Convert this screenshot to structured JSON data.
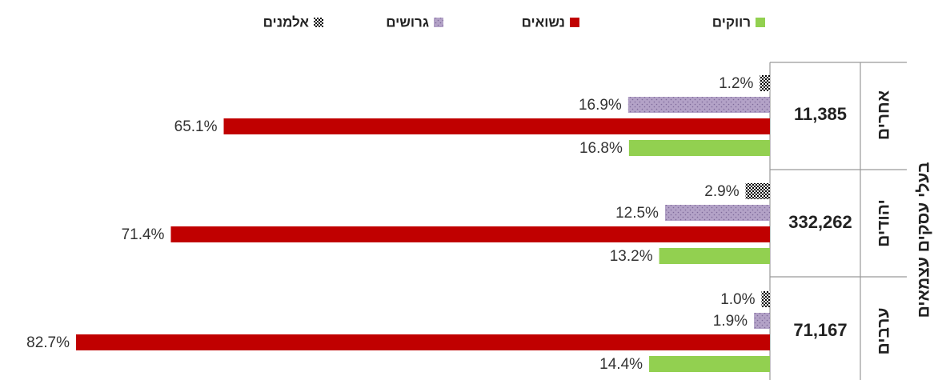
{
  "chart_data": {
    "type": "hbar",
    "ylabel": "בעלי עסקים עצמאים",
    "categories": [
      "אחרים",
      "יהודים",
      "ערבים"
    ],
    "totals": [
      11385,
      332262,
      71167
    ],
    "total_labels": [
      "11,385",
      "332,262",
      "71,167"
    ],
    "series": [
      {
        "name": "רווקים",
        "color": "#92d050",
        "values": [
          16.8,
          13.2,
          14.4
        ],
        "value_labels": [
          "16.8%",
          "13.2%",
          "14.4%"
        ]
      },
      {
        "name": "נשואים",
        "color": "#c00000",
        "values": [
          65.1,
          71.4,
          82.7
        ],
        "value_labels": [
          "65.1%",
          "71.4%",
          "82.7%"
        ]
      },
      {
        "name": "גרושים",
        "color": "#b3a2c7",
        "pattern": "dots",
        "values": [
          16.9,
          12.5,
          1.9
        ],
        "value_labels": [
          "16.9%",
          "12.5%",
          "1.9%"
        ]
      },
      {
        "name": "אלמנים",
        "color": "#000000",
        "pattern": "checker",
        "values": [
          1.2,
          2.9,
          1.0
        ],
        "value_labels": [
          "1.2%",
          "2.9%",
          "1.0%"
        ]
      }
    ]
  }
}
